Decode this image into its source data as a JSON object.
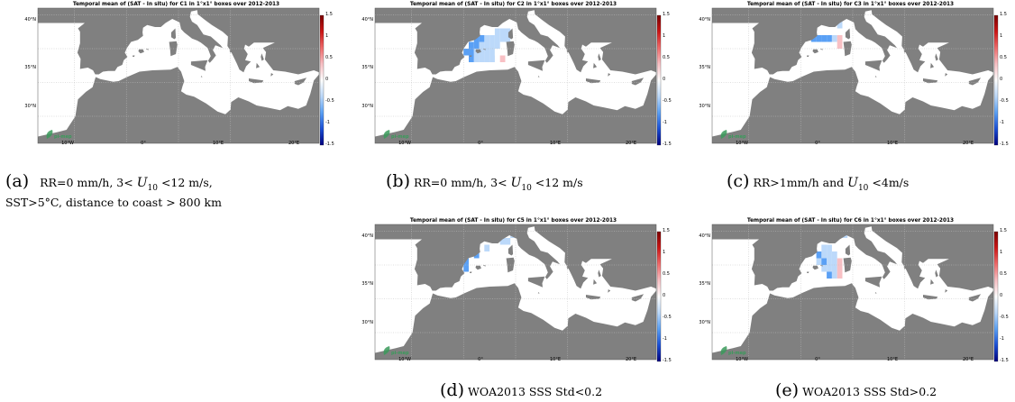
{
  "colors": {
    "land": "#808080",
    "sea": "#ffffff",
    "grid": "#bfbfbf",
    "colorscale": [
      "#00007f",
      "#1a4fd6",
      "#5aa0f5",
      "#bcd9fa",
      "#ffffff",
      "#f8c0c4",
      "#ef6a6a",
      "#cc1515",
      "#7a0000"
    ]
  },
  "logo": {
    "text": "pi-mep",
    "icon": "pi-mep-leaf-icon"
  },
  "colorbar_ticks": [
    "1.5",
    "1",
    "0.5",
    "0",
    "-0.5",
    "-1",
    "-1.5"
  ],
  "lat_ticks": [
    "40°N",
    "35°N",
    "30°N"
  ],
  "lon_ticks": [
    "10°W",
    "0°",
    "10°E",
    "20°E"
  ],
  "panels": [
    {
      "id": "a",
      "title": "Temporal mean of (SAT - In situ) for C1 in 1°x1° boxes over 2012-2013",
      "boxes": [],
      "caption": {
        "label": "(a)",
        "pre": "RR=0 mm/h, 3<",
        "var": "U",
        "sub": "10",
        "post": "<12 m/s,",
        "line2": "SST>5°C, distance to coast > 800 km"
      }
    },
    {
      "id": "b",
      "title": "Temporal mean of (SAT - In situ) for C2 in 1°x1° boxes over 2012-2013",
      "boxes": [
        {
          "lon": 6,
          "lat": 42,
          "value": -0.5
        },
        {
          "lon": 7,
          "lat": 42,
          "value": -0.3
        },
        {
          "lon": 8,
          "lat": 42,
          "value": -0.2
        },
        {
          "lon": 2,
          "lat": 41,
          "value": -0.6
        },
        {
          "lon": 3,
          "lat": 41,
          "value": -0.7
        },
        {
          "lon": 4,
          "lat": 41,
          "value": -0.5
        },
        {
          "lon": 5,
          "lat": 41,
          "value": -0.4
        },
        {
          "lon": 6,
          "lat": 41,
          "value": -0.3
        },
        {
          "lon": 7,
          "lat": 41,
          "value": -0.3
        },
        {
          "lon": 8,
          "lat": 41,
          "value": -0.2
        },
        {
          "lon": 1,
          "lat": 40,
          "value": -0.6
        },
        {
          "lon": 2,
          "lat": 40,
          "value": -0.6
        },
        {
          "lon": 3,
          "lat": 40,
          "value": -0.5
        },
        {
          "lon": 4,
          "lat": 40,
          "value": -0.4
        },
        {
          "lon": 5,
          "lat": 40,
          "value": -0.3
        },
        {
          "lon": 6,
          "lat": 40,
          "value": -0.2
        },
        {
          "lon": 0,
          "lat": 39,
          "value": -0.8
        },
        {
          "lon": 1,
          "lat": 39,
          "value": -0.6
        },
        {
          "lon": 2,
          "lat": 39,
          "value": -0.5
        },
        {
          "lon": 3,
          "lat": 39,
          "value": -0.4
        },
        {
          "lon": 4,
          "lat": 39,
          "value": -0.3
        },
        {
          "lon": 5,
          "lat": 39,
          "value": -0.2
        },
        {
          "lon": 6,
          "lat": 39,
          "value": -0.1
        },
        {
          "lon": 1,
          "lat": 38,
          "value": -0.7
        },
        {
          "lon": 2,
          "lat": 38,
          "value": -0.5
        },
        {
          "lon": 3,
          "lat": 38,
          "value": -0.3
        },
        {
          "lon": 4,
          "lat": 38,
          "value": -0.2
        },
        {
          "lon": 5,
          "lat": 38,
          "value": -0.3
        },
        {
          "lon": 7,
          "lat": 38,
          "value": 0.3
        }
      ],
      "caption": {
        "label": "(b)",
        "pre": "RR=0 mm/h, 3<",
        "var": "U",
        "sub": "10",
        "post": "<12 m/s",
        "line2": ""
      }
    },
    {
      "id": "c",
      "title": "Temporal mean of (SAT - In situ) for C3 in 1°x1° boxes over 2012-2013",
      "boxes": [
        {
          "lon": 7,
          "lat": 43,
          "value": -0.3
        },
        {
          "lon": 2,
          "lat": 41,
          "value": -0.6
        },
        {
          "lon": 3,
          "lat": 41,
          "value": -0.6
        },
        {
          "lon": 4,
          "lat": 41,
          "value": -0.6
        },
        {
          "lon": 5,
          "lat": 41,
          "value": -0.6
        },
        {
          "lon": 6,
          "lat": 41,
          "value": -0.3
        },
        {
          "lon": 7,
          "lat": 41,
          "value": 0.2
        },
        {
          "lon": 7,
          "lat": 40,
          "value": 0.4
        }
      ],
      "caption": {
        "label": "(c)",
        "pre": "RR>1mm/h and",
        "var": "U",
        "sub": "10",
        "post": "<4m/s",
        "line2": ""
      }
    },
    {
      "id": "d",
      "title": "Temporal mean of (SAT - In situ) for C5 in 1°x1° boxes over 2012-2013",
      "boxes": [
        {
          "lon": 9,
          "lat": 44,
          "value": -0.3
        },
        {
          "lon": 7,
          "lat": 43,
          "value": -0.5
        },
        {
          "lon": 8,
          "lat": 43,
          "value": -0.3
        },
        {
          "lon": 4,
          "lat": 42,
          "value": -0.5
        },
        {
          "lon": 2,
          "lat": 41,
          "value": -0.6
        },
        {
          "lon": 0,
          "lat": 40,
          "value": -0.9
        },
        {
          "lon": 0,
          "lat": 39,
          "value": -0.8
        }
      ],
      "caption": {
        "label": "(d)",
        "pre": "WOA2013 SSS Std<0.2",
        "var": "",
        "sub": "",
        "post": "",
        "line2": ""
      }
    },
    {
      "id": "e",
      "title": "Temporal mean of (SAT - In situ) for C6 in 1°x1° boxes over 2012-2013",
      "boxes": [
        {
          "lon": 8,
          "lat": 44,
          "value": -0.2
        },
        {
          "lon": 4,
          "lat": 42,
          "value": -0.4
        },
        {
          "lon": 5,
          "lat": 42,
          "value": -0.3
        },
        {
          "lon": 3,
          "lat": 41,
          "value": -0.6
        },
        {
          "lon": 4,
          "lat": 41,
          "value": -0.5
        },
        {
          "lon": 5,
          "lat": 41,
          "value": -0.4
        },
        {
          "lon": 6,
          "lat": 41,
          "value": -0.3
        },
        {
          "lon": 3,
          "lat": 40,
          "value": -0.5
        },
        {
          "lon": 4,
          "lat": 40,
          "value": -0.6
        },
        {
          "lon": 5,
          "lat": 40,
          "value": -0.3
        },
        {
          "lon": 6,
          "lat": 40,
          "value": -0.2
        },
        {
          "lon": 7,
          "lat": 40,
          "value": 0.3
        },
        {
          "lon": 4,
          "lat": 39,
          "value": -0.4
        },
        {
          "lon": 5,
          "lat": 39,
          "value": -0.3
        },
        {
          "lon": 6,
          "lat": 39,
          "value": -0.2
        },
        {
          "lon": 7,
          "lat": 39,
          "value": 0.3
        },
        {
          "lon": 5,
          "lat": 38,
          "value": -0.6
        },
        {
          "lon": 6,
          "lat": 38,
          "value": -0.3
        },
        {
          "lon": 7,
          "lat": 38,
          "value": 0.4
        }
      ],
      "caption": {
        "label": "(e)",
        "pre": "WOA2013 SSS Std>0.2",
        "var": "",
        "sub": "",
        "post": "",
        "line2": ""
      }
    }
  ]
}
